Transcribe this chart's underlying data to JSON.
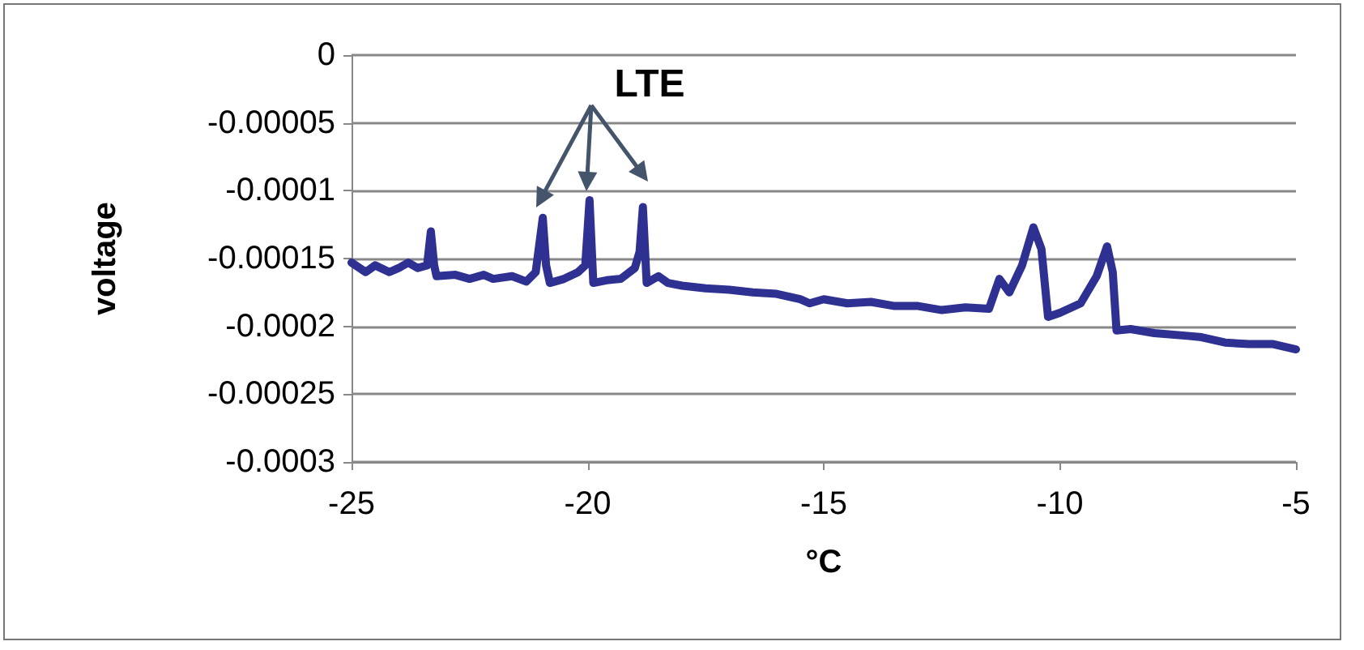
{
  "chart_data": {
    "type": "line",
    "xlabel": "°C",
    "ylabel": "voltage",
    "annotations": [
      "LTE"
    ],
    "xlim": [
      -25,
      -5
    ],
    "xticks": [
      -25,
      -20,
      -15,
      -10,
      -5
    ],
    "ylim": [
      -0.0003,
      0
    ],
    "yticks": [
      -0.0003,
      -0.00025,
      -0.0002,
      -0.00015,
      -0.0001,
      {
        "value": -5e-05,
        "label": "-0.00005"
      },
      0
    ],
    "grid": "y",
    "marker": "none",
    "line_style": "solid",
    "series": [
      {
        "color": "#2e3191",
        "x": [
          -25,
          -24.7,
          -24.5,
          -24.2,
          -24,
          -23.8,
          -23.6,
          -23.4,
          -23.32,
          -23.25,
          -23.2,
          -22.8,
          -22.5,
          -22.2,
          -22,
          -21.6,
          -21.3,
          -21.1,
          -20.95,
          -20.88,
          -20.8,
          -20.5,
          -20.2,
          -20.05,
          -19.96,
          -19.88,
          -19.6,
          -19.3,
          -19.0,
          -18.9,
          -18.83,
          -18.75,
          -18.5,
          -18.3,
          -18,
          -17.5,
          -17,
          -16.5,
          -16,
          -15.5,
          -15.3,
          -15,
          -14.5,
          -14,
          -13.5,
          -13,
          -12.5,
          -12,
          -11.5,
          -11.28,
          -11.07,
          -10.8,
          -10.56,
          -10.39,
          -10.25,
          -10,
          -9.56,
          -9.22,
          -9.0,
          -8.88,
          -8.8,
          -8.5,
          -8,
          -7.3,
          -7,
          -6.5,
          -6,
          -5.5,
          -5
        ],
        "values": [
          -0.000153,
          -0.00016,
          -0.000155,
          -0.00016,
          -0.000157,
          -0.000153,
          -0.000157,
          -0.000155,
          -0.00013,
          -0.000155,
          -0.000163,
          -0.000162,
          -0.000165,
          -0.000162,
          -0.000165,
          -0.000163,
          -0.000167,
          -0.00016,
          -0.00012,
          -0.000155,
          -0.000168,
          -0.000165,
          -0.00016,
          -0.000155,
          -0.000107,
          -0.000168,
          -0.000166,
          -0.000165,
          -0.000157,
          -0.000145,
          -0.000112,
          -0.000168,
          -0.000163,
          -0.000168,
          -0.00017,
          -0.000172,
          -0.000173,
          -0.000175,
          -0.000176,
          -0.00018,
          -0.000183,
          -0.00018,
          -0.000183,
          -0.000182,
          -0.000185,
          -0.000185,
          -0.000188,
          -0.000186,
          -0.000187,
          -0.000165,
          -0.000175,
          -0.000155,
          -0.000127,
          -0.000143,
          -0.000193,
          -0.00019,
          -0.000183,
          -0.000163,
          -0.000141,
          -0.00016,
          -0.000203,
          -0.000202,
          -0.000205,
          -0.000207,
          -0.000208,
          -0.000212,
          -0.000213,
          -0.000213,
          -0.000217
        ]
      }
    ]
  }
}
